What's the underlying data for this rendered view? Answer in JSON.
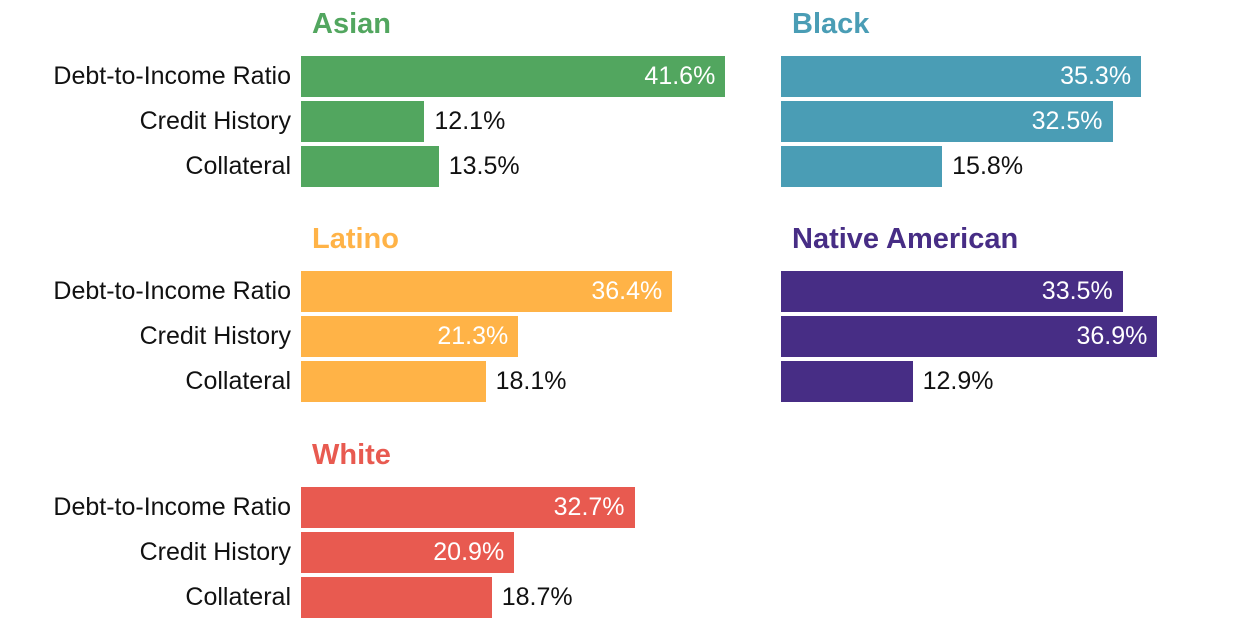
{
  "chart_data": [
    {
      "type": "bar",
      "orientation": "horizontal",
      "title": "Asian",
      "color": "#52a65f",
      "categories": [
        "Debt-to-Income Ratio",
        "Credit History",
        "Collateral"
      ],
      "values": [
        41.6,
        12.1,
        13.5
      ],
      "value_labels": [
        "41.6%",
        "12.1%",
        "13.5%"
      ],
      "xlim": [
        0,
        48
      ]
    },
    {
      "type": "bar",
      "orientation": "horizontal",
      "title": "Black",
      "color": "#4a9db5",
      "categories": [
        "Debt-to-Income Ratio",
        "Credit History",
        "Collateral"
      ],
      "values": [
        35.3,
        32.5,
        15.8
      ],
      "value_labels": [
        "35.3%",
        "32.5%",
        "15.8%"
      ],
      "xlim": [
        0,
        48
      ]
    },
    {
      "type": "bar",
      "orientation": "horizontal",
      "title": "Latino",
      "color": "#ffb347",
      "categories": [
        "Debt-to-Income Ratio",
        "Credit History",
        "Collateral"
      ],
      "values": [
        36.4,
        21.3,
        18.1
      ],
      "value_labels": [
        "36.4%",
        "21.3%",
        "18.1%"
      ],
      "xlim": [
        0,
        48
      ]
    },
    {
      "type": "bar",
      "orientation": "horizontal",
      "title": "Native American",
      "color": "#472d85",
      "categories": [
        "Debt-to-Income Ratio",
        "Credit History",
        "Collateral"
      ],
      "values": [
        33.5,
        36.9,
        12.9
      ],
      "value_labels": [
        "33.5%",
        "36.9%",
        "12.9%"
      ],
      "xlim": [
        0,
        48
      ]
    },
    {
      "type": "bar",
      "orientation": "horizontal",
      "title": "White",
      "color": "#e85a50",
      "categories": [
        "Debt-to-Income Ratio",
        "Credit History",
        "Collateral"
      ],
      "values": [
        32.7,
        20.9,
        18.7
      ],
      "value_labels": [
        "32.7%",
        "20.9%",
        "18.7%"
      ],
      "xlim": [
        0,
        48
      ]
    }
  ]
}
